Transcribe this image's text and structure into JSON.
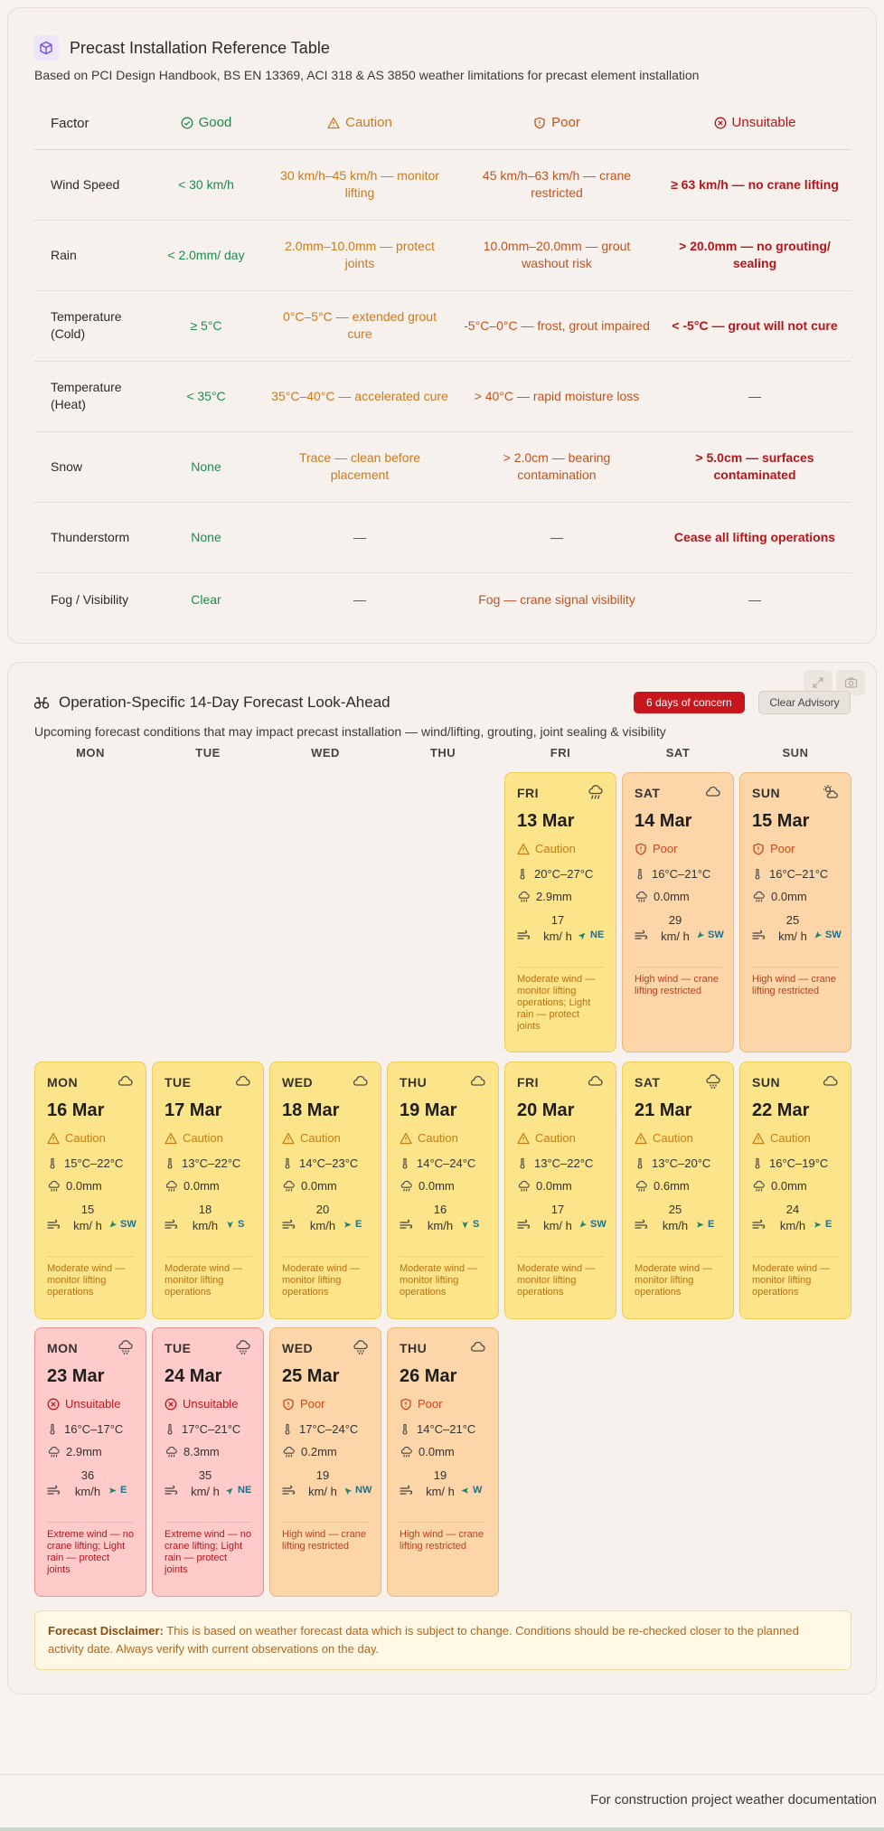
{
  "reference": {
    "title": "Precast Installation Reference Table",
    "subtitle": "Based on PCI Design Handbook, BS EN 13369, ACI 318 & AS 3850 weather limitations for precast element installation",
    "headers": {
      "factor": "Factor",
      "good": "Good",
      "caution": "Caution",
      "poor": "Poor",
      "unsuitable": "Unsuitable"
    },
    "rows": [
      {
        "factor": "Wind Speed",
        "good": "< 30 km/h",
        "caution": "30 km/h–45 km/h — monitor lifting",
        "poor": "45 km/h–63 km/h — crane restricted",
        "unsuitable": "≥ 63 km/h — no crane lifting"
      },
      {
        "factor": "Rain",
        "good": "< 2.0mm/ day",
        "caution": "2.0mm–10.0mm — protect joints",
        "poor": "10.0mm–20.0mm — grout washout risk",
        "unsuitable": "> 20.0mm — no grouting/ sealing"
      },
      {
        "factor": "Temperature (Cold)",
        "good": "≥ 5°C",
        "caution": "0°C–5°C — extended grout cure",
        "poor": "-5°C–0°C — frost, grout impaired",
        "unsuitable": "< -5°C — grout will not cure"
      },
      {
        "factor": "Temperature (Heat)",
        "good": "< 35°C",
        "caution": "35°C–40°C — accelerated cure",
        "poor": "> 40°C — rapid moisture loss",
        "unsuitable": "—"
      },
      {
        "factor": "Snow",
        "good": "None",
        "caution": "Trace — clean before placement",
        "poor": "> 2.0cm — bearing contamination",
        "unsuitable": "> 5.0cm — surfaces contaminated"
      },
      {
        "factor": "Thunderstorm",
        "good": "None",
        "caution": "—",
        "poor": "—",
        "unsuitable": "Cease all lifting operations"
      },
      {
        "factor": "Fog / Visibility",
        "good": "Clear",
        "caution": "—",
        "poor": "Fog — crane signal visibility",
        "unsuitable": "—"
      }
    ]
  },
  "forecast": {
    "title": "Operation-Specific 14-Day Forecast Look-Ahead",
    "subtitle": "Upcoming forecast conditions that may impact precast installation — wind/lifting, grouting, joint sealing & visibility",
    "concern_badge": "6 days of concern",
    "clear_button": "Clear Advisory",
    "weekdays": [
      "MON",
      "TUE",
      "WED",
      "THU",
      "FRI",
      "SAT",
      "SUN"
    ],
    "days": [
      {
        "dow": "FRI",
        "date": "13 Mar",
        "rating": "Caution",
        "level": "caution",
        "temp": "20°C–27°C",
        "rain": "2.9mm",
        "wind": "17 km/ h",
        "dir": "NE",
        "note": "Moderate wind — monitor lifting operations; Light rain — protect joints",
        "icon": "rain-icon"
      },
      {
        "dow": "SAT",
        "date": "14 Mar",
        "rating": "Poor",
        "level": "poor",
        "temp": "16°C–21°C",
        "rain": "0.0mm",
        "wind": "29 km/ h",
        "dir": "SW",
        "note": "High wind — crane lifting restricted",
        "icon": "cloud-icon"
      },
      {
        "dow": "SUN",
        "date": "15 Mar",
        "rating": "Poor",
        "level": "poor",
        "temp": "16°C–21°C",
        "rain": "0.0mm",
        "wind": "25 km/ h",
        "dir": "SW",
        "note": "High wind — crane lifting restricted",
        "icon": "sun-cloud-icon"
      },
      {
        "dow": "MON",
        "date": "16 Mar",
        "rating": "Caution",
        "level": "caution",
        "temp": "15°C–22°C",
        "rain": "0.0mm",
        "wind": "15 km/ h",
        "dir": "SW",
        "note": "Moderate wind — monitor lifting operations",
        "icon": "cloud-icon"
      },
      {
        "dow": "TUE",
        "date": "17 Mar",
        "rating": "Caution",
        "level": "caution",
        "temp": "13°C–22°C",
        "rain": "0.0mm",
        "wind": "18 km/h",
        "dir": "S",
        "note": "Moderate wind — monitor lifting operations",
        "icon": "cloud-icon"
      },
      {
        "dow": "WED",
        "date": "18 Mar",
        "rating": "Caution",
        "level": "caution",
        "temp": "14°C–23°C",
        "rain": "0.0mm",
        "wind": "20 km/h",
        "dir": "E",
        "note": "Moderate wind — monitor lifting operations",
        "icon": "cloud-icon"
      },
      {
        "dow": "THU",
        "date": "19 Mar",
        "rating": "Caution",
        "level": "caution",
        "temp": "14°C–24°C",
        "rain": "0.0mm",
        "wind": "16 km/h",
        "dir": "S",
        "note": "Moderate wind — monitor lifting operations",
        "icon": "cloud-icon"
      },
      {
        "dow": "FRI",
        "date": "20 Mar",
        "rating": "Caution",
        "level": "caution",
        "temp": "13°C–22°C",
        "rain": "0.0mm",
        "wind": "17 km/ h",
        "dir": "SW",
        "note": "Moderate wind — monitor lifting operations",
        "icon": "cloud-icon"
      },
      {
        "dow": "SAT",
        "date": "21 Mar",
        "rating": "Caution",
        "level": "caution",
        "temp": "13°C–20°C",
        "rain": "0.6mm",
        "wind": "25 km/h",
        "dir": "E",
        "note": "Moderate wind — monitor lifting operations",
        "icon": "drizzle-icon"
      },
      {
        "dow": "SUN",
        "date": "22 Mar",
        "rating": "Caution",
        "level": "caution",
        "temp": "16°C–19°C",
        "rain": "0.0mm",
        "wind": "24 km/h",
        "dir": "E",
        "note": "Moderate wind — monitor lifting operations",
        "icon": "cloud-icon"
      },
      {
        "dow": "MON",
        "date": "23 Mar",
        "rating": "Unsuitable",
        "level": "unsuitable",
        "temp": "16°C–17°C",
        "rain": "2.9mm",
        "wind": "36 km/h",
        "dir": "E",
        "note": "Extreme wind — no crane lifting; Light rain — protect joints",
        "icon": "drizzle-icon"
      },
      {
        "dow": "TUE",
        "date": "24 Mar",
        "rating": "Unsuitable",
        "level": "unsuitable",
        "temp": "17°C–21°C",
        "rain": "8.3mm",
        "wind": "35 km/ h",
        "dir": "NE",
        "note": "Extreme wind — no crane lifting; Light rain — protect joints",
        "icon": "drizzle-icon"
      },
      {
        "dow": "WED",
        "date": "25 Mar",
        "rating": "Poor",
        "level": "poor",
        "temp": "17°C–24°C",
        "rain": "0.2mm",
        "wind": "19 km/ h",
        "dir": "NW",
        "note": "High wind — crane lifting restricted",
        "icon": "drizzle-icon"
      },
      {
        "dow": "THU",
        "date": "26 Mar",
        "rating": "Poor",
        "level": "poor",
        "temp": "14°C–21°C",
        "rain": "0.0mm",
        "wind": "19 km/ h",
        "dir": "W",
        "note": "High wind — crane lifting restricted",
        "icon": "cloud-icon"
      }
    ],
    "disclaimer_label": "Forecast Disclaimer:",
    "disclaimer_text": " This is based on weather forecast data which is subject to change. Conditions should be re-checked closer to the planned activity date. Always verify with current observations on the day."
  },
  "footer": "For construction project weather documentation",
  "colors": {
    "good": "#1f8a4c",
    "caution": "#cc7a1c",
    "poor": "#c0541e",
    "unsuitable": "#b3161b"
  }
}
